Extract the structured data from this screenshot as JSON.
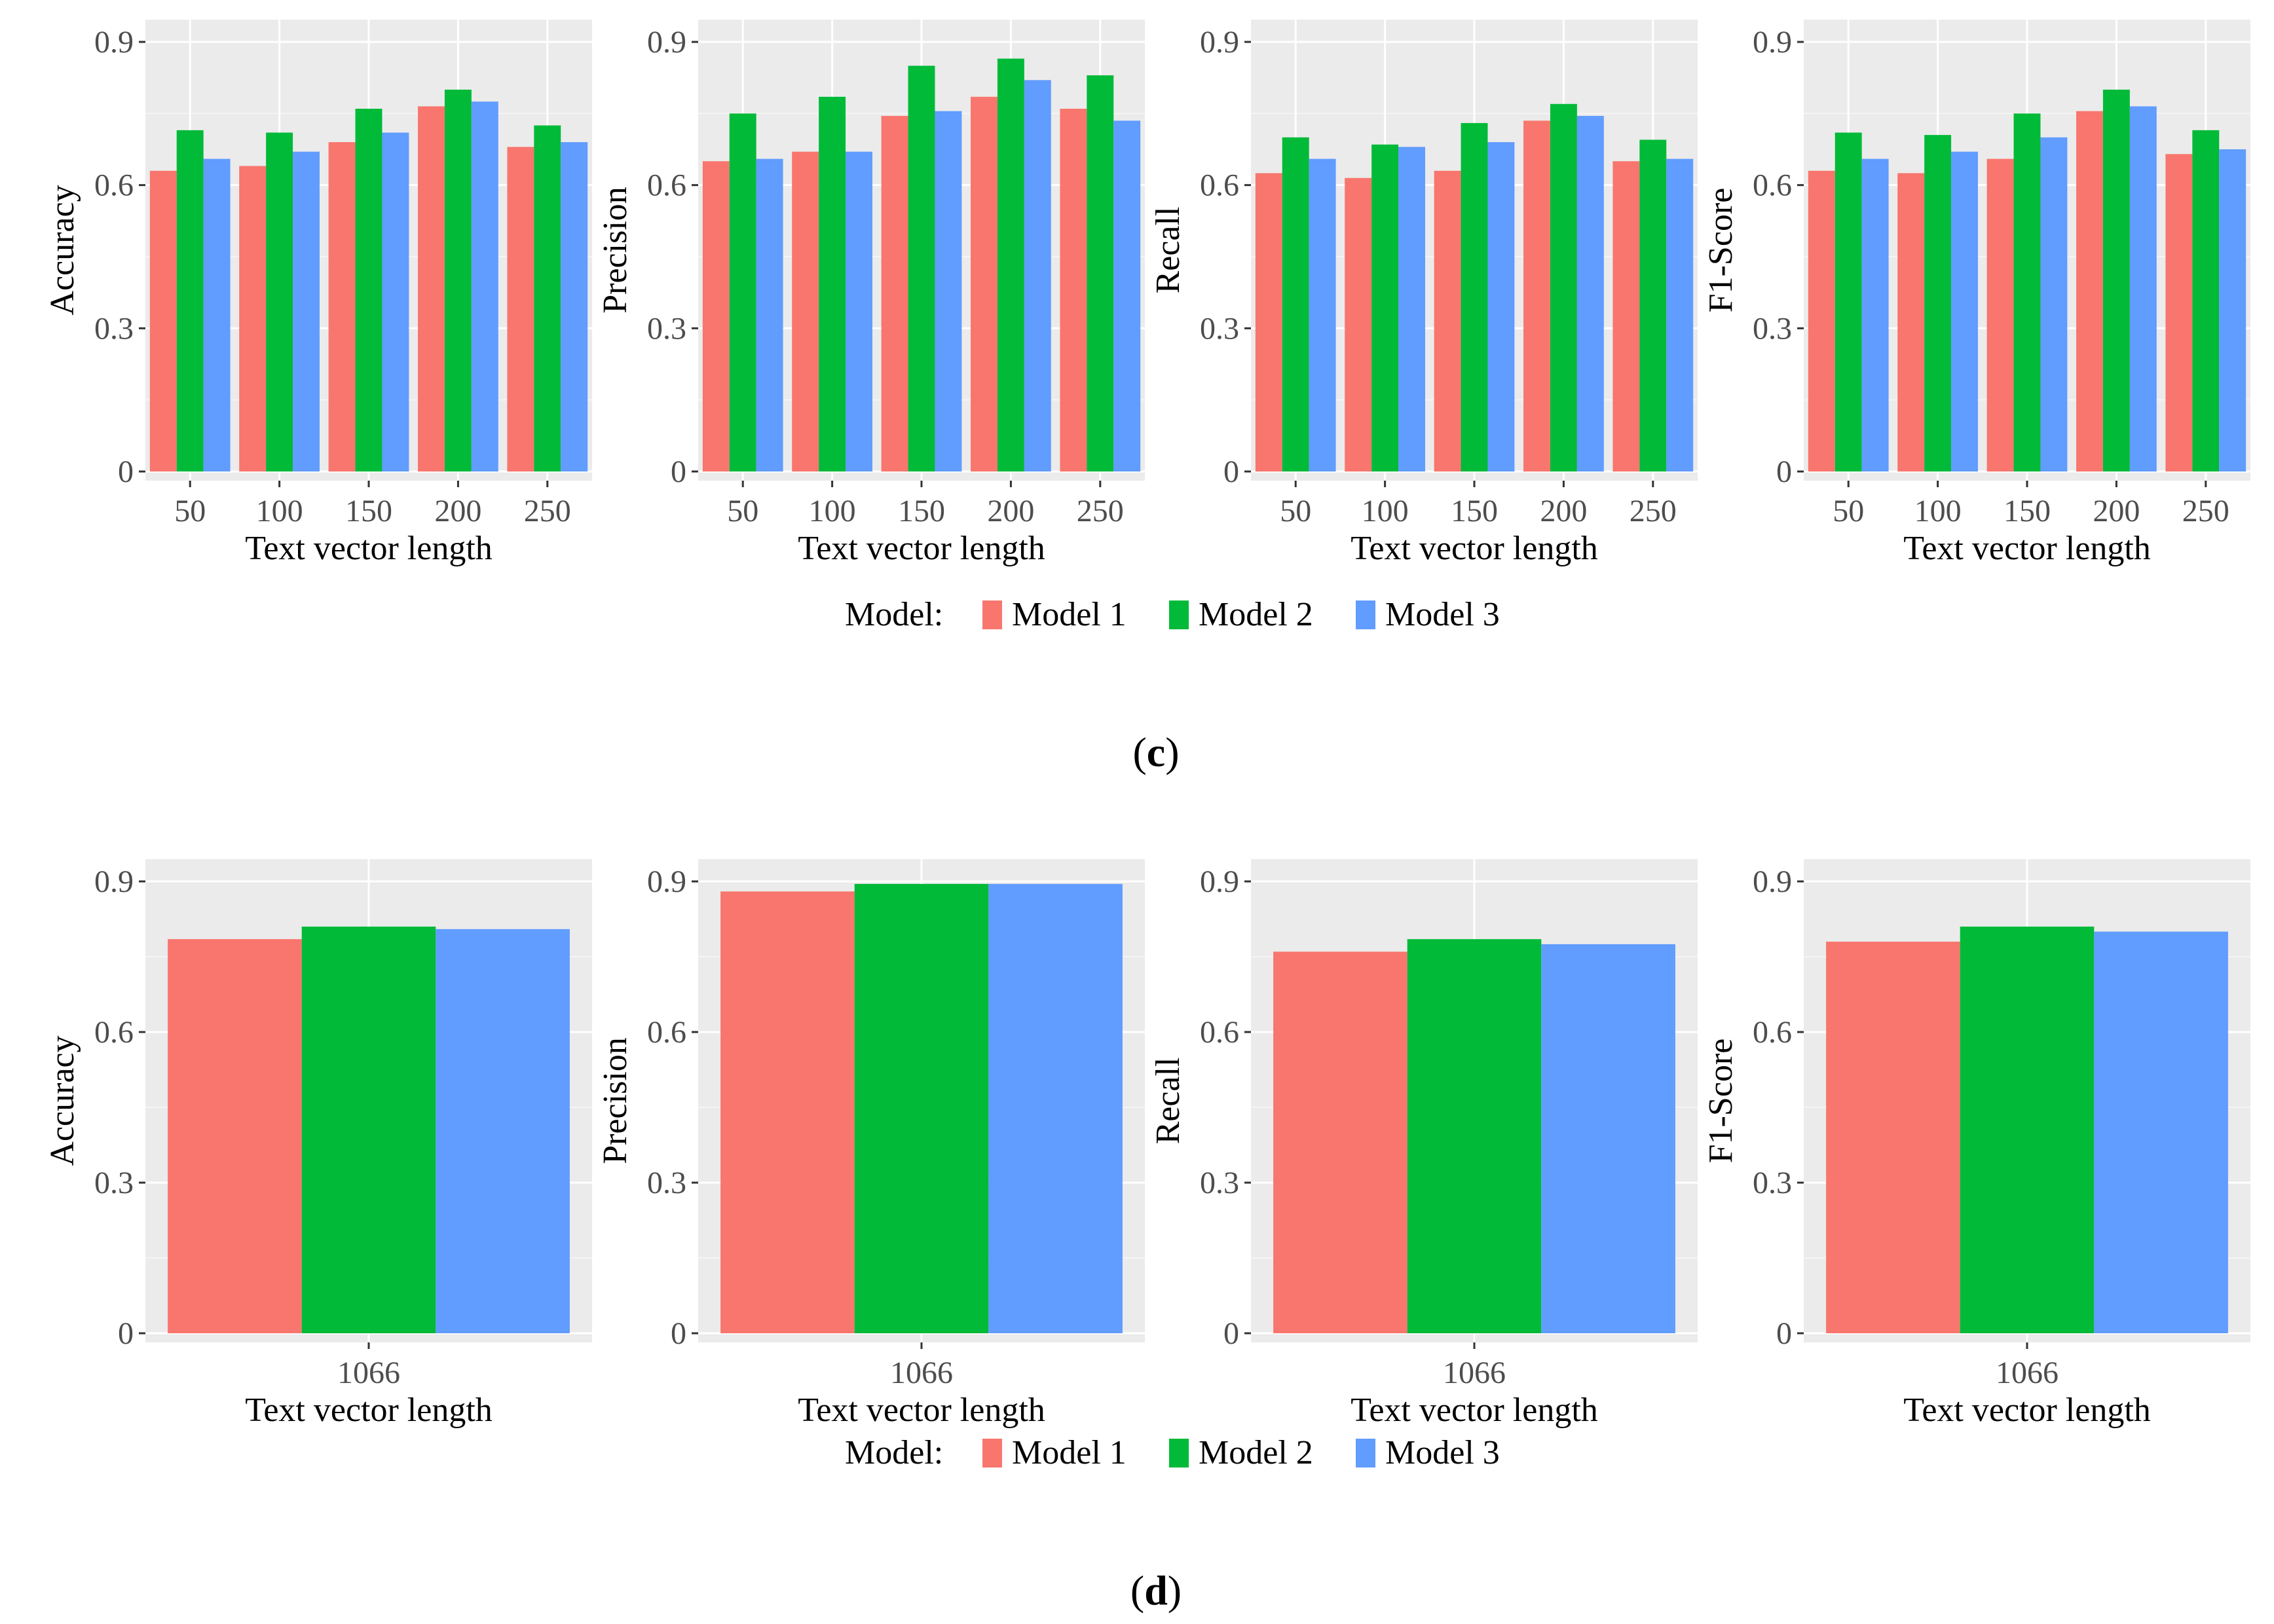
{
  "colors": {
    "Model 1": "#F8766D",
    "Model 2": "#00BA38",
    "Model 3": "#619CFF",
    "panel_bg": "#EBEBEB",
    "grid": "#FFFFFF"
  },
  "legend": {
    "title": "Model:",
    "items": [
      "Model 1",
      "Model 2",
      "Model 3"
    ]
  },
  "panel_labels": {
    "c": "c",
    "d": "d"
  },
  "chart_data": [
    {
      "type": "bar",
      "panel": "c",
      "ylabel": "Accuracy",
      "xlabel": "Text vector length",
      "categories": [
        "50",
        "100",
        "150",
        "200",
        "250"
      ],
      "ylim": [
        0,
        0.9
      ],
      "yticks": [
        "0",
        "0.3",
        "0.6",
        "0.9"
      ],
      "ytick_values": [
        0,
        0.3,
        0.6,
        0.9
      ],
      "series": [
        {
          "name": "Model 1",
          "values": [
            0.63,
            0.64,
            0.69,
            0.765,
            0.68
          ]
        },
        {
          "name": "Model 2",
          "values": [
            0.715,
            0.71,
            0.76,
            0.8,
            0.725
          ]
        },
        {
          "name": "Model 3",
          "values": [
            0.655,
            0.67,
            0.71,
            0.775,
            0.69
          ]
        }
      ]
    },
    {
      "type": "bar",
      "panel": "c",
      "ylabel": "Precision",
      "xlabel": "Text vector length",
      "categories": [
        "50",
        "100",
        "150",
        "200",
        "250"
      ],
      "ylim": [
        0,
        0.9
      ],
      "yticks": [
        "0",
        "0.3",
        "0.6",
        "0.9"
      ],
      "ytick_values": [
        0,
        0.3,
        0.6,
        0.9
      ],
      "series": [
        {
          "name": "Model 1",
          "values": [
            0.65,
            0.67,
            0.745,
            0.785,
            0.76
          ]
        },
        {
          "name": "Model 2",
          "values": [
            0.75,
            0.785,
            0.85,
            0.865,
            0.83
          ]
        },
        {
          "name": "Model 3",
          "values": [
            0.655,
            0.67,
            0.755,
            0.82,
            0.735
          ]
        }
      ]
    },
    {
      "type": "bar",
      "panel": "c",
      "ylabel": "Recall",
      "xlabel": "Text vector length",
      "categories": [
        "50",
        "100",
        "150",
        "200",
        "250"
      ],
      "ylim": [
        0,
        0.9
      ],
      "yticks": [
        "0",
        "0.3",
        "0.6",
        "0.9"
      ],
      "ytick_values": [
        0,
        0.3,
        0.6,
        0.9
      ],
      "series": [
        {
          "name": "Model 1",
          "values": [
            0.625,
            0.615,
            0.63,
            0.735,
            0.65
          ]
        },
        {
          "name": "Model 2",
          "values": [
            0.7,
            0.685,
            0.73,
            0.77,
            0.695
          ]
        },
        {
          "name": "Model 3",
          "values": [
            0.655,
            0.68,
            0.69,
            0.745,
            0.655
          ]
        }
      ]
    },
    {
      "type": "bar",
      "panel": "c",
      "ylabel": "F1-Score",
      "xlabel": "Text vector length",
      "categories": [
        "50",
        "100",
        "150",
        "200",
        "250"
      ],
      "ylim": [
        0,
        0.9
      ],
      "yticks": [
        "0",
        "0.3",
        "0.6",
        "0.9"
      ],
      "ytick_values": [
        0,
        0.3,
        0.6,
        0.9
      ],
      "series": [
        {
          "name": "Model 1",
          "values": [
            0.63,
            0.625,
            0.655,
            0.755,
            0.665
          ]
        },
        {
          "name": "Model 2",
          "values": [
            0.71,
            0.705,
            0.75,
            0.8,
            0.715
          ]
        },
        {
          "name": "Model 3",
          "values": [
            0.655,
            0.67,
            0.7,
            0.765,
            0.675
          ]
        }
      ]
    },
    {
      "type": "bar",
      "panel": "d",
      "ylabel": "Accuracy",
      "xlabel": "Text vector length",
      "categories": [
        "1066"
      ],
      "ylim": [
        0,
        0.9
      ],
      "yticks": [
        "0",
        "0.3",
        "0.6",
        "0.9"
      ],
      "ytick_values": [
        0,
        0.3,
        0.6,
        0.9
      ],
      "series": [
        {
          "name": "Model 1",
          "values": [
            0.785
          ]
        },
        {
          "name": "Model 2",
          "values": [
            0.81
          ]
        },
        {
          "name": "Model 3",
          "values": [
            0.805
          ]
        }
      ]
    },
    {
      "type": "bar",
      "panel": "d",
      "ylabel": "Precision",
      "xlabel": "Text vector length",
      "categories": [
        "1066"
      ],
      "ylim": [
        0,
        0.9
      ],
      "yticks": [
        "0",
        "0.3",
        "0.6",
        "0.9"
      ],
      "ytick_values": [
        0,
        0.3,
        0.6,
        0.9
      ],
      "series": [
        {
          "name": "Model 1",
          "values": [
            0.88
          ]
        },
        {
          "name": "Model 2",
          "values": [
            0.895
          ]
        },
        {
          "name": "Model 3",
          "values": [
            0.895
          ]
        }
      ]
    },
    {
      "type": "bar",
      "panel": "d",
      "ylabel": "Recall",
      "xlabel": "Text vector length",
      "categories": [
        "1066"
      ],
      "ylim": [
        0,
        0.9
      ],
      "yticks": [
        "0",
        "0.3",
        "0.6",
        "0.9"
      ],
      "ytick_values": [
        0,
        0.3,
        0.6,
        0.9
      ],
      "series": [
        {
          "name": "Model 1",
          "values": [
            0.76
          ]
        },
        {
          "name": "Model 2",
          "values": [
            0.785
          ]
        },
        {
          "name": "Model 3",
          "values": [
            0.775
          ]
        }
      ]
    },
    {
      "type": "bar",
      "panel": "d",
      "ylabel": "F1-Score",
      "xlabel": "Text vector length",
      "categories": [
        "1066"
      ],
      "ylim": [
        0,
        0.9
      ],
      "yticks": [
        "0",
        "0.3",
        "0.6",
        "0.9"
      ],
      "ytick_values": [
        0,
        0.3,
        0.6,
        0.9
      ],
      "series": [
        {
          "name": "Model 1",
          "values": [
            0.78
          ]
        },
        {
          "name": "Model 2",
          "values": [
            0.81
          ]
        },
        {
          "name": "Model 3",
          "values": [
            0.8
          ]
        }
      ]
    }
  ]
}
